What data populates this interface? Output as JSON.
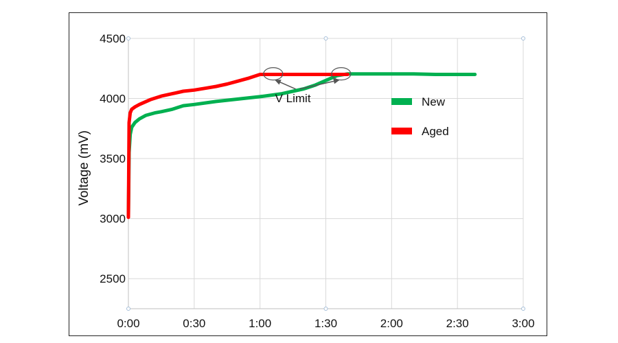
{
  "chart_data": {
    "type": "line",
    "title": "",
    "xlabel": "",
    "ylabel": "Voltage (mV)",
    "xlim": [
      0,
      180
    ],
    "ylim": [
      2250,
      4500
    ],
    "x_ticks": [
      0,
      30,
      60,
      90,
      120,
      150,
      180
    ],
    "x_tick_labels": [
      "0:00",
      "0:30",
      "1:00",
      "1:30",
      "2:00",
      "2:30",
      "3:00"
    ],
    "y_ticks": [
      2500,
      3000,
      3500,
      4000,
      4500
    ],
    "y_tick_labels": [
      "2500",
      "3000",
      "3500",
      "4000",
      "4500"
    ],
    "grid": true,
    "legend_position": "right",
    "series": [
      {
        "name": "New",
        "color": "#00B050",
        "x": [
          0,
          0.3,
          0.8,
          1.5,
          3,
          5,
          8,
          12,
          15,
          20,
          25,
          30,
          40,
          50,
          60,
          70,
          75,
          80,
          85,
          90,
          95,
          100,
          110,
          120,
          130,
          140,
          150,
          158
        ],
        "y": [
          3020,
          3550,
          3700,
          3760,
          3800,
          3830,
          3860,
          3880,
          3890,
          3910,
          3940,
          3950,
          3975,
          3995,
          4015,
          4040,
          4060,
          4080,
          4110,
          4150,
          4190,
          4205,
          4205,
          4205,
          4205,
          4200,
          4200,
          4200
        ]
      },
      {
        "name": "Aged",
        "color": "#FF0000",
        "x": [
          0,
          0.3,
          0.8,
          1.5,
          3,
          5,
          10,
          15,
          20,
          25,
          30,
          35,
          40,
          45,
          50,
          55,
          60,
          70,
          80,
          90,
          100
        ],
        "y": [
          3010,
          3800,
          3880,
          3910,
          3930,
          3950,
          3990,
          4020,
          4040,
          4060,
          4070,
          4085,
          4100,
          4120,
          4145,
          4170,
          4200,
          4200,
          4200,
          4200,
          4200
        ]
      }
    ],
    "annotations": [
      {
        "text": "V Limit",
        "x": 75,
        "y": 3970,
        "targets": [
          [
            66,
            4205
          ],
          [
            97,
            4205
          ]
        ]
      }
    ]
  }
}
